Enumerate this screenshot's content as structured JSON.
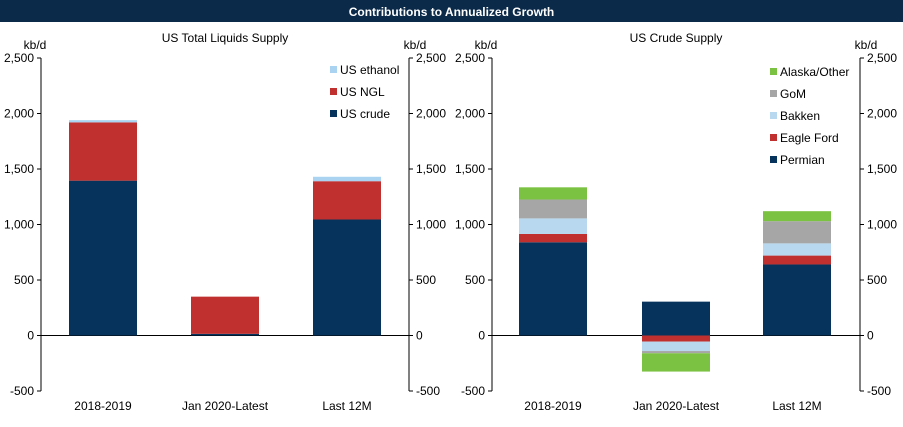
{
  "header": {
    "title": "Contributions to Annualized Growth"
  },
  "colors": {
    "us_crude": "#06335b",
    "us_ngl": "#c0302f",
    "us_ethanol": "#a9d3f0",
    "permian": "#06335b",
    "eagle_ford": "#c0302f",
    "bakken": "#b7d8ee",
    "gom": "#a6a6a6",
    "alaska_other": "#7cc242"
  },
  "chart_data": [
    {
      "type": "bar",
      "stacked": true,
      "title": "US Total Liquids Supply",
      "ylabel_left": "kb/d",
      "ylabel_right": "kb/d",
      "ylim": [
        -500,
        2500
      ],
      "yticks": [
        -500,
        0,
        500,
        1000,
        1500,
        2000,
        2500
      ],
      "ytick_labels": [
        "-500",
        "0",
        "500",
        "1,000",
        "1,500",
        "2,000",
        "2,500"
      ],
      "categories": [
        "2018-2019",
        "Jan 2020-Latest",
        "Last 12M"
      ],
      "legend_position": "top-right",
      "series": [
        {
          "name": "US crude",
          "color_key": "us_crude",
          "values": [
            1395,
            15,
            1045
          ]
        },
        {
          "name": "US NGL",
          "color_key": "us_ngl",
          "values": [
            525,
            335,
            345
          ]
        },
        {
          "name": "US ethanol",
          "color_key": "us_ethanol",
          "values": [
            20,
            0,
            40
          ]
        }
      ]
    },
    {
      "type": "bar",
      "stacked": true,
      "title": "US Crude Supply",
      "ylabel_left": "kb/d",
      "ylabel_right": "kb/d",
      "ylim": [
        -500,
        2500
      ],
      "yticks": [
        -500,
        0,
        500,
        1000,
        1500,
        2000,
        2500
      ],
      "ytick_labels": [
        "-500",
        "0",
        "500",
        "1,000",
        "1,500",
        "2,000",
        "2,500"
      ],
      "categories": [
        "2018-2019",
        "Jan 2020-Latest",
        "Last 12M"
      ],
      "legend_position": "top-right",
      "series": [
        {
          "name": "Permian",
          "color_key": "permian",
          "values": [
            840,
            305,
            640
          ]
        },
        {
          "name": "Eagle Ford",
          "color_key": "eagle_ford",
          "values": [
            75,
            -55,
            80
          ]
        },
        {
          "name": "Bakken",
          "color_key": "bakken",
          "values": [
            140,
            -85,
            110
          ]
        },
        {
          "name": "GoM",
          "color_key": "gom",
          "values": [
            170,
            -20,
            200
          ]
        },
        {
          "name": "Alaska/Other",
          "color_key": "alaska_other",
          "values": [
            110,
            -165,
            90
          ]
        }
      ]
    }
  ]
}
